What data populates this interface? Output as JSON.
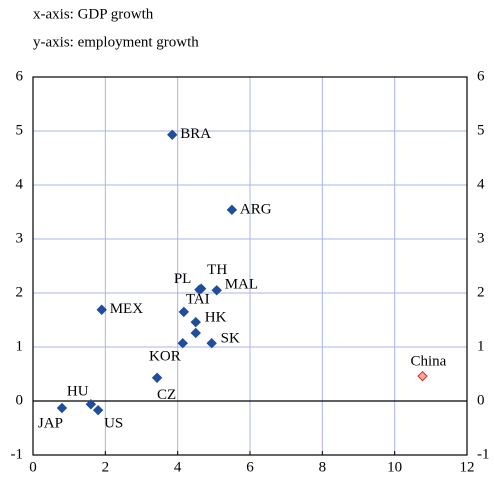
{
  "chart_data": {
    "type": "scatter",
    "annotations": [
      "x-axis: GDP growth",
      "y-axis: employment growth"
    ],
    "point_labels": [
      "BRA",
      "ARG",
      "PL",
      "TH",
      "MAL",
      "MEX",
      "TAI",
      "HK",
      null,
      "SK",
      "KOR",
      "CZ",
      "China",
      "HU",
      "JAP",
      "US"
    ],
    "x": [
      3.85,
      5.5,
      4.6,
      4.65,
      5.08,
      1.9,
      4.17,
      4.5,
      4.5,
      4.94,
      4.14,
      3.43,
      10.77,
      1.6,
      0.8,
      1.8
    ],
    "series": [
      {
        "color": "#1f4e9c",
        "values": [
          4.93,
          3.54,
          2.06,
          2.08,
          2.05,
          1.69,
          1.65,
          1.46,
          1.26,
          1.07,
          1.07,
          0.43,
          0.46,
          -0.06,
          -0.13,
          -0.17
        ]
      }
    ],
    "highlight": {
      "index": 12,
      "color": "#f4a6a0",
      "edge": "#d03020"
    },
    "xlim": [
      0,
      12
    ],
    "xticks": [
      0,
      2,
      4,
      6,
      8,
      10,
      12
    ],
    "ylim": [
      -1,
      6
    ],
    "yticks": [
      -1,
      0,
      1,
      2,
      3,
      4,
      5,
      6
    ],
    "grid": true
  }
}
